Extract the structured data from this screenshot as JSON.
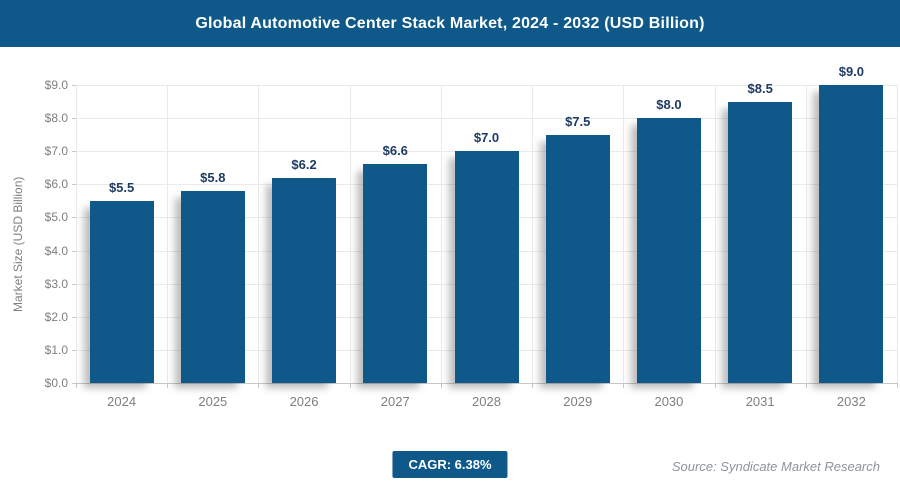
{
  "header": {
    "title": "Global Automotive Center Stack Market, 2024 - 2032 (USD Billion)"
  },
  "chart_data": {
    "type": "bar",
    "title": "Global Automotive Center Stack Market, 2024 - 2032 (USD Billion)",
    "categories": [
      "2024",
      "2025",
      "2026",
      "2027",
      "2028",
      "2029",
      "2030",
      "2031",
      "2032"
    ],
    "values": [
      5.5,
      5.8,
      6.2,
      6.6,
      7.0,
      7.5,
      8.0,
      8.5,
      9.0
    ],
    "data_labels": [
      "$5.5",
      "$5.8",
      "$6.2",
      "$6.6",
      "$7.0",
      "$7.5",
      "$8.0",
      "$8.5",
      "$9.0"
    ],
    "xlabel": "",
    "ylabel": "Market Size (USD Billion)",
    "ylim": [
      0,
      9
    ],
    "ytick_step": 1,
    "ytick_prefix": "$",
    "ytick_decimals": 1,
    "grid": true,
    "legend": "none",
    "bar_color": "#0e588a",
    "data_label_color": "#1f3a63",
    "axis_text_color": "#7f7f7f"
  },
  "footer": {
    "cagr_label": "CAGR: 6.38%",
    "source": "Source: Syndicate Market Research"
  }
}
